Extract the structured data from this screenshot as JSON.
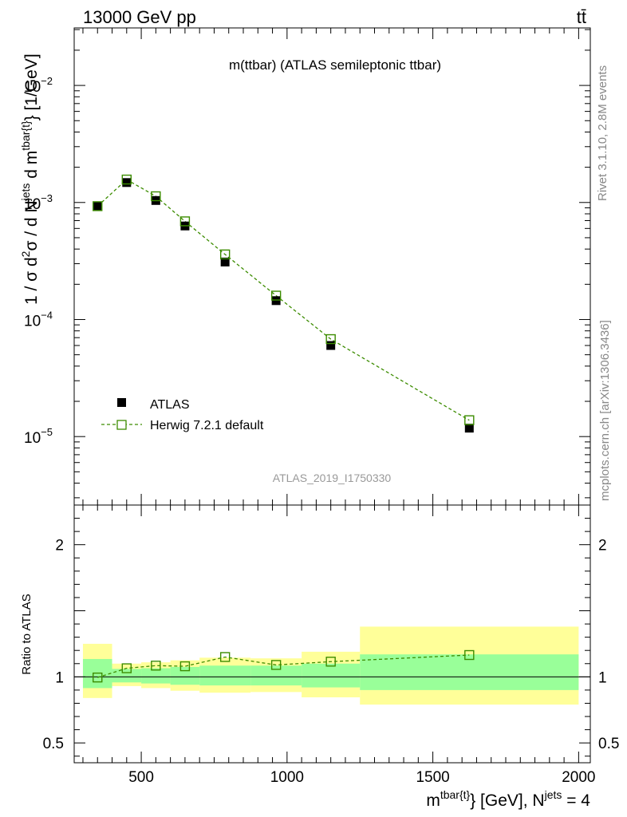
{
  "header": {
    "energy_label": "13000 GeV pp",
    "process_label": "tt̄",
    "rivet_label": "Rivet 3.1.10,  2.8M events",
    "mcplots_label": "mcplots.cern.ch [arXiv:1306.3436]",
    "analysis_id": "ATLAS_2019_I1750330"
  },
  "chart_data": [
    {
      "type": "scatter",
      "panel": "main",
      "title": "m(ttbar) (ATLAS semileptonic ttbar)",
      "ylabel_parts": {
        "a": "1 / σ d",
        "b": "2",
        "c": "σ / d N",
        "d": "jets",
        "e": " d m",
        "f": "tbar{t}",
        "g": "} [1/GeV]"
      },
      "yscale": "log",
      "ylim": [
        2.6e-06,
        0.031
      ],
      "xlim": [
        270,
        2040
      ],
      "ytick_labels": [
        {
          "value": 1e-05,
          "base": "10",
          "exp": "−5"
        },
        {
          "value": 0.0001,
          "base": "10",
          "exp": "−4"
        },
        {
          "value": 0.001,
          "base": "10",
          "exp": "−3"
        },
        {
          "value": 0.01,
          "base": "10",
          "exp": "−2"
        }
      ],
      "series": [
        {
          "name": "ATLAS",
          "color": "#000000",
          "marker": "filled-square",
          "x": [
            350,
            450,
            550,
            650,
            787.5,
            962.5,
            1150,
            1625
          ],
          "y": [
            0.00093,
            0.00148,
            0.00104,
            0.00063,
            0.00031,
            0.000145,
            6e-05,
            1.18e-05
          ]
        },
        {
          "name": "Herwig 7.2.1 default",
          "color": "#3c8c00",
          "marker": "open-square",
          "line": "dashed",
          "x": [
            350,
            450,
            550,
            650,
            787.5,
            962.5,
            1150,
            1625
          ],
          "y": [
            0.00093,
            0.00157,
            0.00113,
            0.00069,
            0.00036,
            0.00016,
            6.8e-05,
            1.38e-05
          ]
        }
      ],
      "legend_position": "lower-left"
    },
    {
      "type": "scatter",
      "panel": "ratio",
      "ylabel": "Ratio to ATLAS",
      "xlabel_parts": {
        "a": "m",
        "b": "tbar{t}",
        "c": "} [GeV], N",
        "d": "jets",
        "e": " = 4"
      },
      "ylim": [
        0.35,
        2.3
      ],
      "xlim": [
        270,
        2040
      ],
      "x_ticks": [
        500,
        1000,
        1500,
        2000
      ],
      "x_tick_labels": [
        "500",
        "1000",
        "1500",
        "2000"
      ],
      "y_ticks": [
        0.5,
        1,
        2
      ],
      "y_tick_labels": [
        "0.5",
        "1",
        "2"
      ],
      "bands": [
        {
          "x0": 300,
          "x1": 400,
          "inner": [
            0.915,
            1.135
          ],
          "outer": [
            0.84,
            1.25
          ]
        },
        {
          "x0": 400,
          "x1": 500,
          "inner": [
            0.958,
            1.06
          ],
          "outer": [
            0.93,
            1.1
          ]
        },
        {
          "x0": 500,
          "x1": 600,
          "inner": [
            0.95,
            1.065
          ],
          "outer": [
            0.915,
            1.11
          ]
        },
        {
          "x0": 600,
          "x1": 700,
          "inner": [
            0.94,
            1.075
          ],
          "outer": [
            0.895,
            1.125
          ]
        },
        {
          "x0": 700,
          "x1": 875,
          "inner": [
            0.935,
            1.085
          ],
          "outer": [
            0.88,
            1.145
          ]
        },
        {
          "x0": 875,
          "x1": 1050,
          "inner": [
            0.935,
            1.085
          ],
          "outer": [
            0.885,
            1.14
          ]
        },
        {
          "x0": 1050,
          "x1": 1250,
          "inner": [
            0.92,
            1.1
          ],
          "outer": [
            0.845,
            1.19
          ]
        },
        {
          "x0": 1250,
          "x1": 2000,
          "inner": [
            0.9,
            1.17
          ],
          "outer": [
            0.79,
            1.38
          ]
        }
      ],
      "band_colors": {
        "inner": "#99ff99",
        "outer": "#ffff99"
      },
      "series": [
        {
          "name": "Herwig 7.2.1 default / ATLAS",
          "color": "#3c8c00",
          "marker": "open-square",
          "line": "dashed",
          "x": [
            350,
            450,
            550,
            650,
            787.5,
            962.5,
            1150,
            1625
          ],
          "y": [
            0.995,
            1.065,
            1.085,
            1.08,
            1.15,
            1.09,
            1.115,
            1.165
          ]
        }
      ]
    }
  ]
}
